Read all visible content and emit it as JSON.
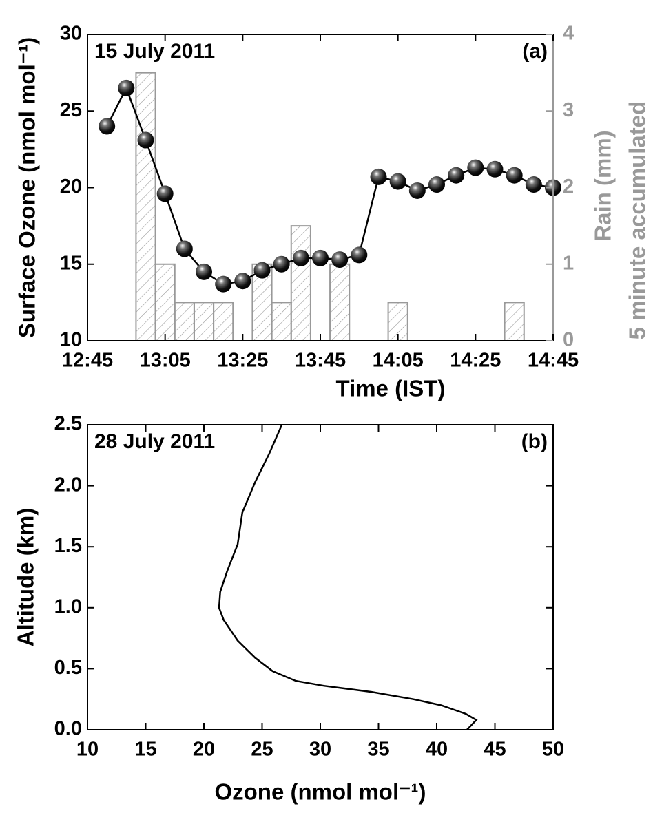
{
  "chart_data": [
    {
      "type": "combo",
      "annotations": [
        "15 July 2011",
        "(a)"
      ],
      "x_label": "Time (IST)",
      "y_label": "Surface Ozone (nmol mol⁻¹)",
      "y2_label": [
        "Rain (mm)",
        "5 minute accumulated"
      ],
      "xlim": [
        "12:45",
        "14:45"
      ],
      "xticks": [
        "12:45",
        "13:05",
        "13:25",
        "13:45",
        "14:05",
        "14:25",
        "14:45"
      ],
      "ylim": [
        10,
        30
      ],
      "yticks": [
        10,
        15,
        20,
        25,
        30
      ],
      "y2lim": [
        0,
        4
      ],
      "y2ticks": [
        0,
        1,
        2,
        3,
        4
      ],
      "series": [
        {
          "type": "line",
          "color": "#000000",
          "x": [
            "12:50",
            "12:55",
            "13:00",
            "13:05",
            "13:10",
            "13:15",
            "13:20",
            "13:25",
            "13:30",
            "13:35",
            "13:40",
            "13:45",
            "13:50",
            "13:55",
            "14:00",
            "14:05",
            "14:10",
            "14:15",
            "14:20",
            "14:25",
            "14:30",
            "14:35",
            "14:40",
            "14:45"
          ],
          "values": [
            24.0,
            26.5,
            23.1,
            19.6,
            16.0,
            14.5,
            13.7,
            13.9,
            14.6,
            15.0,
            15.4,
            15.4,
            15.3,
            15.6,
            20.7,
            20.4,
            19.8,
            20.2,
            20.8,
            21.3,
            21.2,
            20.8,
            20.2,
            20.0
          ]
        },
        {
          "type": "bar",
          "axis": "y2",
          "color": "#999999",
          "x": [
            "13:00",
            "13:05",
            "13:10",
            "13:15",
            "13:20",
            "13:30",
            "13:35",
            "13:40",
            "13:50",
            "14:05",
            "14:35"
          ],
          "values": [
            3.5,
            1,
            0.5,
            0.5,
            0.5,
            1,
            0.5,
            1.5,
            1,
            0.5,
            0.5
          ]
        }
      ]
    },
    {
      "type": "line",
      "annotations": [
        "28 July 2011",
        "(b)"
      ],
      "x_label": "Ozone (nmol mol⁻¹)",
      "y_label": "Altitude (km)",
      "xlim": [
        10,
        50
      ],
      "xticks": [
        10,
        15,
        20,
        25,
        30,
        35,
        40,
        45,
        50
      ],
      "ylim": [
        0,
        2.5
      ],
      "yticks": [
        {
          "value": 0,
          "label": "0.0"
        },
        0.5,
        {
          "value": 1,
          "label": "1.0"
        },
        1.5,
        {
          "value": 2,
          "label": "2.0"
        },
        2.5
      ],
      "series": [
        {
          "color": "#000000",
          "x": [
            42.6,
            42.9,
            43.4,
            42.5,
            40.4,
            38.0,
            34.4,
            30.3,
            27.9,
            25.9,
            24.4,
            22.9,
            21.7,
            21.3,
            21.4,
            22.0,
            22.9,
            23.3,
            24.4,
            25.6,
            26.7
          ],
          "values": [
            0.0,
            0.03,
            0.08,
            0.13,
            0.2,
            0.25,
            0.31,
            0.36,
            0.4,
            0.48,
            0.59,
            0.73,
            0.9,
            1.0,
            1.13,
            1.3,
            1.52,
            1.78,
            2.03,
            2.26,
            2.5
          ]
        }
      ]
    }
  ]
}
